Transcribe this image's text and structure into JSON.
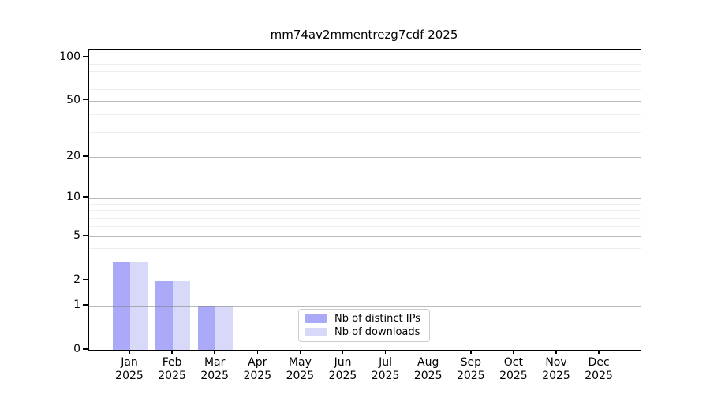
{
  "chart_data": {
    "type": "bar",
    "title": "mm74av2mmentrezg7cdf 2025",
    "year_label": "2025",
    "categories": [
      "Jan",
      "Feb",
      "Mar",
      "Apr",
      "May",
      "Jun",
      "Jul",
      "Aug",
      "Sep",
      "Oct",
      "Nov",
      "Dec"
    ],
    "series": [
      {
        "name": "Nb of distinct IPs",
        "color": "#aaaaf8",
        "values": [
          3,
          2,
          1,
          0,
          0,
          0,
          0,
          0,
          0,
          0,
          0,
          0
        ]
      },
      {
        "name": "Nb of downloads",
        "color": "#d8d8f8",
        "values": [
          3,
          2,
          1,
          0,
          0,
          0,
          0,
          0,
          0,
          0,
          0,
          0
        ]
      }
    ],
    "yscale": "log1p",
    "ylim": [
      0,
      113
    ],
    "y_major_ticks": [
      0,
      1,
      2,
      5,
      10,
      20,
      50,
      100
    ],
    "y_minor_gridlines": [
      3,
      4,
      6,
      7,
      8,
      9,
      30,
      40,
      60,
      70,
      80,
      90
    ],
    "xlabel": "",
    "ylabel": "",
    "grid": true,
    "legend_position": "inside-bottom-center",
    "colors": {
      "axis": "#000000",
      "major_grid": "#b5b5b5",
      "minor_grid": "#ebebeb",
      "background": "#ffffff"
    }
  }
}
